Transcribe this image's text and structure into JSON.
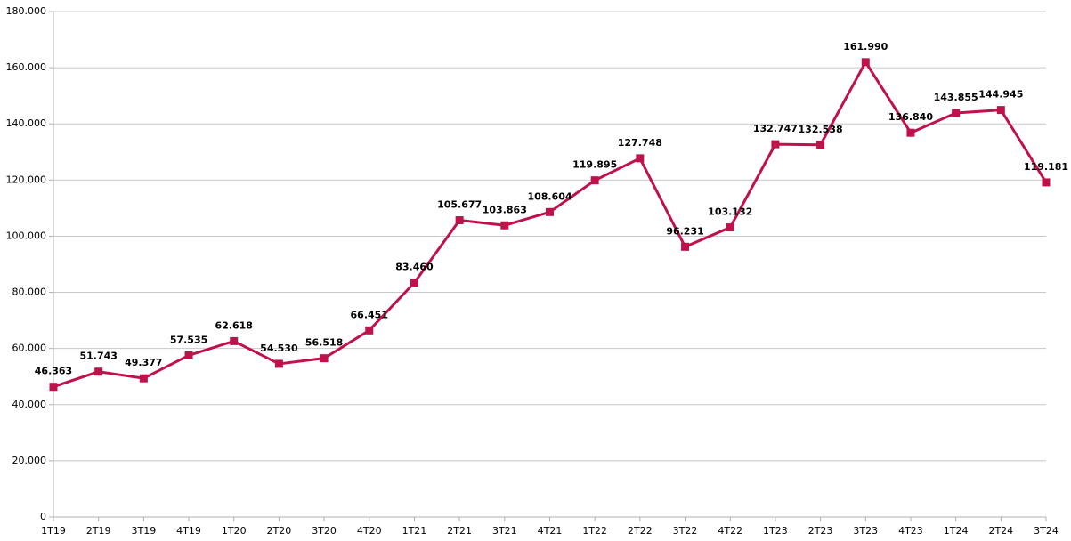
{
  "chart_data": {
    "type": "line",
    "categories": [
      "1T19",
      "2T19",
      "3T19",
      "4T19",
      "1T20",
      "2T20",
      "3T20",
      "4T20",
      "1T21",
      "2T21",
      "3T21",
      "4T21",
      "1T22",
      "2T22",
      "3T22",
      "4T22",
      "1T23",
      "2T23",
      "3T23",
      "4T23",
      "1T24",
      "2T24",
      "3T24"
    ],
    "series": [
      {
        "color": "#c0124a",
        "values": [
          46363,
          51743,
          49377,
          57535,
          62618,
          54530,
          56518,
          66451,
          83460,
          105677,
          103863,
          108604,
          119895,
          127748,
          96231,
          103132,
          132747,
          132538,
          161990,
          136840,
          143855,
          144945,
          119181
        ],
        "value_labels": [
          "46.363",
          "51.743",
          "49.377",
          "57.535",
          "62.618",
          "54.530",
          "56.518",
          "66.451",
          "83.460",
          "105.677",
          "103.863",
          "108.604",
          "119.895",
          "127.748",
          "96.231",
          "103.132",
          "132.747",
          "132.538",
          "161.990",
          "136.840",
          "143.855",
          "144.945",
          "119.181"
        ]
      }
    ],
    "ylim": [
      0,
      180000
    ],
    "yticks": [
      0,
      {
        "value": 20000,
        "label": "20.000"
      },
      {
        "value": 40000,
        "label": "40.000"
      },
      {
        "value": 60000,
        "label": "60.000"
      },
      {
        "value": 80000,
        "label": "80.000"
      },
      {
        "value": 100000,
        "label": "100.000"
      },
      {
        "value": 120000,
        "label": "120.000"
      },
      {
        "value": 140000,
        "label": "140.000"
      },
      {
        "value": 160000,
        "label": "160.000"
      },
      {
        "value": 180000,
        "label": "180.000"
      }
    ],
    "grid": true
  }
}
